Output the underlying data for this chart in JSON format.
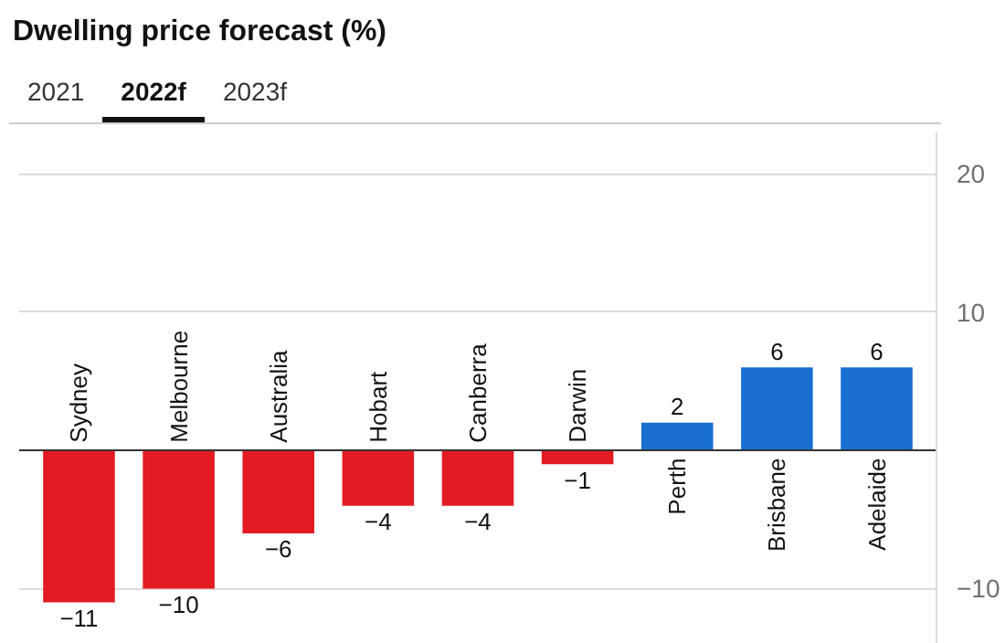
{
  "chart_data": {
    "type": "bar",
    "title": "Dwelling price forecast (%)",
    "annotations": [
      "2021",
      "2022f",
      "2023f"
    ],
    "categories": [
      "Sydney",
      "Melbourne",
      "Australia",
      "Hobart",
      "Canberra",
      "Darwin",
      "Perth",
      "Brisbane",
      "Adelaide"
    ],
    "values": [
      -11,
      -10,
      -6,
      -4,
      -4,
      -1,
      2,
      6,
      6
    ],
    "colors": [
      "#e31b23",
      "#e31b23",
      "#e31b23",
      "#e31b23",
      "#e31b23",
      "#e31b23",
      "#1a6fd0",
      "#1a6fd0",
      "#1a6fd0"
    ],
    "data_labels": true,
    "ylim": [
      -14,
      23
    ],
    "yticks": [
      20,
      10,
      {
        "value": 0,
        "label": null
      },
      -10
    ],
    "grid": "y"
  }
}
